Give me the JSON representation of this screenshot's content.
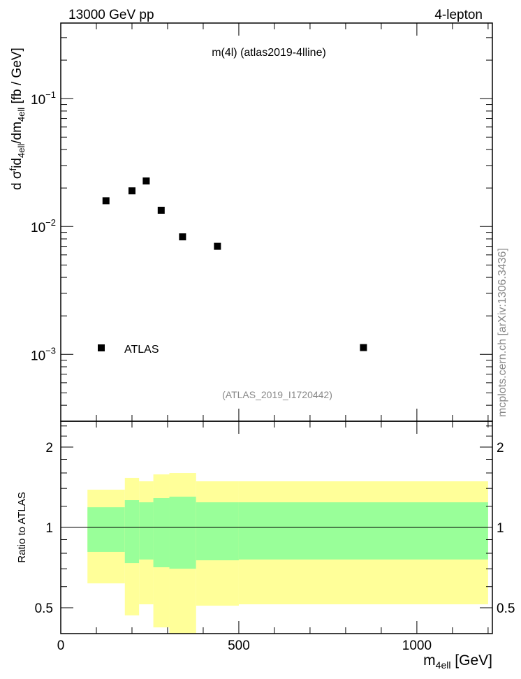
{
  "header": {
    "left": "13000 GeV pp",
    "right": "4-lepton"
  },
  "side_label": "mcplots.cern.ch [arXiv:1306.3436]",
  "colors": {
    "marker": "#000000",
    "band_inner": "#99ff99",
    "band_outer": "#ffff99",
    "watermark": "#888888"
  },
  "chart_data": [
    {
      "type": "scatter",
      "title": "m(4l) (atlas2019-4lline)",
      "analysis_label": "(ATLAS_2019_I1720442)",
      "ylabel_parts": {
        "pre": "d σ",
        "sup1": "f",
        "mid": "id",
        "sub1": "4ell",
        "mid2": "/dm",
        "sub2": "4ell",
        "post": " [fb / GeV]"
      },
      "yscale": "log",
      "xlim": [
        0,
        1212
      ],
      "ylim": [
        0.0003,
        0.39
      ],
      "yticks": [
        {
          "v": 0.1,
          "base": "10",
          "exp": "−1"
        },
        {
          "v": 0.01,
          "base": "10",
          "exp": "−2"
        },
        {
          "v": 0.001,
          "base": "10",
          "exp": "−3"
        }
      ],
      "legend": {
        "label": "ATLAS",
        "placement": "bottom-left"
      },
      "series": [
        {
          "name": "ATLAS",
          "x": [
            127,
            200,
            240,
            282,
            342,
            440,
            850
          ],
          "y": [
            0.0159,
            0.019,
            0.0227,
            0.0134,
            0.0083,
            0.007,
            0.00113
          ]
        }
      ]
    },
    {
      "type": "area",
      "ylabel": "Ratio to ATLAS",
      "xlabel_parts": {
        "pre": "m",
        "sub": "4ell",
        "post": " [GeV]"
      },
      "yscale": "log",
      "xlim": [
        0,
        1212
      ],
      "ylim": [
        0.4,
        2.5
      ],
      "yticks": [
        {
          "v": 2,
          "label": "2"
        },
        {
          "v": 1,
          "label": "1"
        },
        {
          "v": 0.5,
          "label": "0.5"
        }
      ],
      "xticks": [
        {
          "v": 0,
          "label": "0"
        },
        {
          "v": 500,
          "label": "500"
        },
        {
          "v": 1000,
          "label": "1000"
        }
      ],
      "bin_edges": [
        75,
        180,
        220,
        260,
        305,
        380,
        500,
        1200
      ],
      "inner_band": {
        "low": [
          0.81,
          0.735,
          0.758,
          0.709,
          0.7,
          0.753,
          0.758
        ],
        "high": [
          1.19,
          1.265,
          1.242,
          1.288,
          1.304,
          1.242,
          1.242
        ]
      },
      "outer_band": {
        "low": [
          0.617,
          0.468,
          0.515,
          0.422,
          0.38,
          0.509,
          0.515
        ],
        "high": [
          1.385,
          1.534,
          1.489,
          1.58,
          1.6,
          1.489,
          1.489
        ]
      },
      "reference_line": 1
    }
  ]
}
